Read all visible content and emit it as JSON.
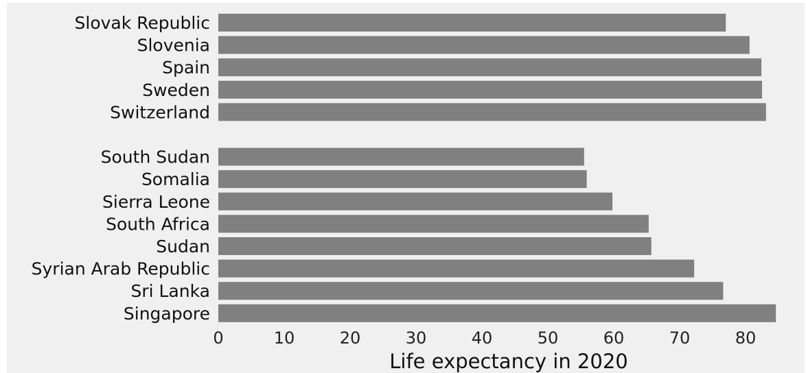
{
  "chart_data": {
    "type": "bar",
    "orientation": "horizontal",
    "title": "",
    "xlabel": "Life expectancy in 2020",
    "ylabel": "",
    "xlim": [
      0,
      85
    ],
    "xticks": [
      0,
      10,
      20,
      30,
      40,
      50,
      60,
      70,
      80
    ],
    "grid": false,
    "legend": "none",
    "bar_color": "#808080",
    "background_color": "#f0f0f0",
    "groups": [
      {
        "categories": [
          "Slovak Republic",
          "Slovenia",
          "Spain",
          "Sweden",
          "Switzerland"
        ],
        "values": [
          77.0,
          80.6,
          82.4,
          82.5,
          83.1
        ]
      },
      {
        "categories": [
          "South Sudan",
          "Somalia",
          "Sierra Leone",
          "South Africa",
          "Sudan",
          "Syrian Arab Republic",
          "Sri Lanka",
          "Singapore"
        ],
        "values": [
          55.5,
          55.9,
          59.8,
          65.3,
          65.7,
          72.2,
          76.6,
          84.6
        ]
      }
    ]
  }
}
